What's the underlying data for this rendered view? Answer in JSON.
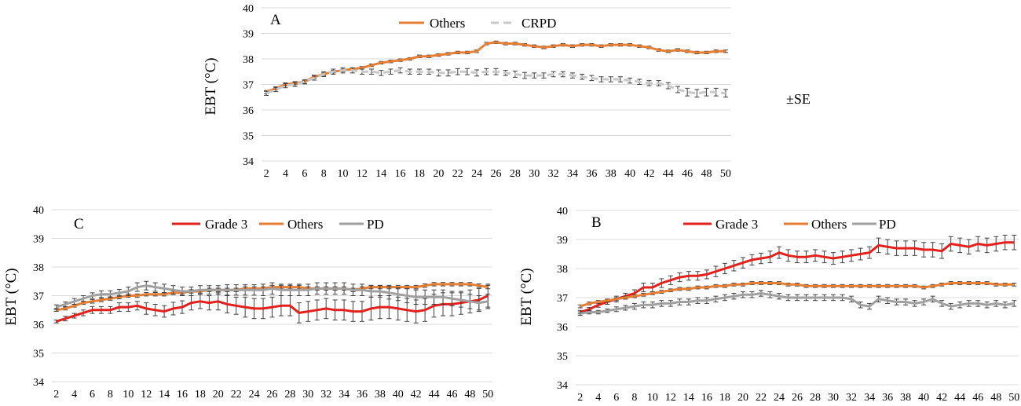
{
  "note": "±SE",
  "chart_data": [
    {
      "type": "line",
      "panel": "A",
      "ylabel": "EBT (°C)",
      "ylim": [
        34,
        40
      ],
      "yticks": [
        "34",
        "35",
        "36",
        "37",
        "38",
        "39",
        "40"
      ],
      "x": [
        2,
        3,
        4,
        5,
        6,
        7,
        8,
        9,
        10,
        11,
        12,
        13,
        14,
        15,
        16,
        17,
        18,
        19,
        20,
        21,
        22,
        23,
        24,
        25,
        26,
        27,
        28,
        29,
        30,
        31,
        32,
        33,
        34,
        35,
        36,
        37,
        38,
        39,
        40,
        41,
        42,
        43,
        44,
        45,
        46,
        47,
        48,
        49,
        50
      ],
      "xticks": [
        "2",
        "4",
        "6",
        "8",
        "10",
        "12",
        "14",
        "16",
        "18",
        "20",
        "22",
        "24",
        "26",
        "28",
        "30",
        "32",
        "34",
        "36",
        "38",
        "40",
        "42",
        "44",
        "46",
        "48",
        "50"
      ],
      "grid": true,
      "legend": "top",
      "series": [
        {
          "name": "Others",
          "color": "#E67E34",
          "style": "solid",
          "values": [
            36.7,
            36.85,
            37.0,
            37.05,
            37.1,
            37.3,
            37.4,
            37.5,
            37.55,
            37.6,
            37.65,
            37.75,
            37.85,
            37.9,
            37.95,
            38.0,
            38.1,
            38.1,
            38.15,
            38.2,
            38.25,
            38.25,
            38.3,
            38.6,
            38.65,
            38.6,
            38.6,
            38.55,
            38.5,
            38.45,
            38.5,
            38.55,
            38.5,
            38.55,
            38.55,
            38.5,
            38.55,
            38.55,
            38.55,
            38.5,
            38.45,
            38.35,
            38.3,
            38.35,
            38.3,
            38.25,
            38.25,
            38.3,
            38.3
          ],
          "se": [
            0.06,
            0.06,
            0.06,
            0.06,
            0.06,
            0.06,
            0.05,
            0.05,
            0.05,
            0.05,
            0.05,
            0.05,
            0.05,
            0.05,
            0.05,
            0.05,
            0.05,
            0.05,
            0.05,
            0.05,
            0.05,
            0.05,
            0.05,
            0.05,
            0.05,
            0.05,
            0.05,
            0.05,
            0.05,
            0.05,
            0.05,
            0.05,
            0.05,
            0.05,
            0.05,
            0.05,
            0.05,
            0.05,
            0.05,
            0.05,
            0.05,
            0.05,
            0.05,
            0.05,
            0.05,
            0.05,
            0.05,
            0.05,
            0.05
          ]
        },
        {
          "name": "CRPD",
          "color": "#C8C8C8",
          "style": "dashed",
          "values": [
            36.65,
            36.8,
            36.95,
            37.0,
            37.1,
            37.25,
            37.4,
            37.5,
            37.55,
            37.55,
            37.5,
            37.5,
            37.45,
            37.5,
            37.55,
            37.5,
            37.5,
            37.5,
            37.45,
            37.45,
            37.5,
            37.5,
            37.45,
            37.5,
            37.5,
            37.45,
            37.4,
            37.35,
            37.35,
            37.35,
            37.4,
            37.4,
            37.35,
            37.3,
            37.25,
            37.2,
            37.2,
            37.2,
            37.15,
            37.1,
            37.05,
            37.05,
            36.95,
            36.8,
            36.7,
            36.65,
            36.7,
            36.7,
            36.65
          ],
          "se": [
            0.08,
            0.08,
            0.08,
            0.08,
            0.08,
            0.08,
            0.09,
            0.1,
            0.1,
            0.1,
            0.1,
            0.1,
            0.1,
            0.1,
            0.1,
            0.1,
            0.1,
            0.1,
            0.12,
            0.12,
            0.12,
            0.12,
            0.12,
            0.12,
            0.12,
            0.1,
            0.12,
            0.12,
            0.1,
            0.1,
            0.1,
            0.1,
            0.1,
            0.1,
            0.1,
            0.1,
            0.1,
            0.1,
            0.1,
            0.1,
            0.1,
            0.1,
            0.12,
            0.12,
            0.15,
            0.15,
            0.15,
            0.15,
            0.15
          ]
        }
      ]
    },
    {
      "type": "line",
      "panel": "C",
      "ylabel": "EBT (°C)",
      "ylim": [
        34,
        40
      ],
      "yticks": [
        "34",
        "35",
        "36",
        "37",
        "38",
        "39",
        "40"
      ],
      "x": [
        2,
        3,
        4,
        5,
        6,
        7,
        8,
        9,
        10,
        11,
        12,
        13,
        14,
        15,
        16,
        17,
        18,
        19,
        20,
        21,
        22,
        23,
        24,
        25,
        26,
        27,
        28,
        29,
        30,
        31,
        32,
        33,
        34,
        35,
        36,
        37,
        38,
        39,
        40,
        41,
        42,
        43,
        44,
        45,
        46,
        47,
        48,
        49,
        50
      ],
      "xticks": [
        "2",
        "4",
        "6",
        "8",
        "10",
        "12",
        "14",
        "16",
        "18",
        "20",
        "22",
        "24",
        "26",
        "28",
        "30",
        "32",
        "34",
        "36",
        "38",
        "40",
        "42",
        "44",
        "46",
        "48",
        "50"
      ],
      "grid": true,
      "legend": "top",
      "series": [
        {
          "name": "Grade 3",
          "color": "#E3201B",
          "style": "solid",
          "values": [
            36.1,
            36.2,
            36.3,
            36.4,
            36.5,
            36.5,
            36.5,
            36.6,
            36.6,
            36.65,
            36.55,
            36.5,
            36.45,
            36.55,
            36.6,
            36.75,
            36.8,
            36.75,
            36.8,
            36.7,
            36.65,
            36.6,
            36.55,
            36.55,
            36.6,
            36.65,
            36.65,
            36.4,
            36.45,
            36.5,
            36.55,
            36.5,
            36.5,
            36.45,
            36.45,
            36.55,
            36.6,
            36.6,
            36.55,
            36.5,
            36.45,
            36.5,
            36.65,
            36.7,
            36.7,
            36.75,
            36.8,
            36.85,
            37.0
          ],
          "se": [
            0.05,
            0.08,
            0.08,
            0.1,
            0.12,
            0.12,
            0.12,
            0.15,
            0.15,
            0.15,
            0.2,
            0.2,
            0.2,
            0.22,
            0.22,
            0.25,
            0.25,
            0.25,
            0.3,
            0.3,
            0.3,
            0.35,
            0.35,
            0.35,
            0.35,
            0.35,
            0.35,
            0.35,
            0.35,
            0.35,
            0.35,
            0.35,
            0.35,
            0.35,
            0.35,
            0.4,
            0.4,
            0.4,
            0.4,
            0.4,
            0.4,
            0.4,
            0.4,
            0.4,
            0.4,
            0.4,
            0.4,
            0.4,
            0.4
          ]
        },
        {
          "name": "Others",
          "color": "#E67E34",
          "style": "solid",
          "values": [
            36.5,
            36.55,
            36.65,
            36.75,
            36.8,
            36.85,
            36.9,
            36.95,
            37.0,
            37.0,
            37.05,
            37.05,
            37.05,
            37.1,
            37.1,
            37.15,
            37.15,
            37.2,
            37.2,
            37.2,
            37.2,
            37.25,
            37.25,
            37.25,
            37.3,
            37.3,
            37.3,
            37.3,
            37.25,
            37.25,
            37.25,
            37.25,
            37.25,
            37.2,
            37.25,
            37.3,
            37.3,
            37.3,
            37.3,
            37.3,
            37.3,
            37.35,
            37.4,
            37.4,
            37.4,
            37.4,
            37.4,
            37.35,
            37.3
          ],
          "se": [
            0.05,
            0.05,
            0.05,
            0.05,
            0.06,
            0.06,
            0.06,
            0.06,
            0.06,
            0.06,
            0.06,
            0.06,
            0.06,
            0.06,
            0.06,
            0.06,
            0.06,
            0.06,
            0.06,
            0.06,
            0.06,
            0.06,
            0.06,
            0.06,
            0.06,
            0.06,
            0.06,
            0.06,
            0.06,
            0.06,
            0.06,
            0.06,
            0.06,
            0.06,
            0.06,
            0.06,
            0.06,
            0.06,
            0.06,
            0.06,
            0.06,
            0.06,
            0.06,
            0.06,
            0.06,
            0.06,
            0.06,
            0.06,
            0.06
          ]
        },
        {
          "name": "PD",
          "color": "#A0A0A0",
          "style": "solid",
          "values": [
            36.6,
            36.7,
            36.8,
            36.9,
            37.0,
            37.05,
            37.05,
            37.1,
            37.15,
            37.3,
            37.35,
            37.3,
            37.25,
            37.2,
            37.15,
            37.15,
            37.2,
            37.2,
            37.2,
            37.2,
            37.2,
            37.2,
            37.2,
            37.2,
            37.25,
            37.2,
            37.2,
            37.2,
            37.2,
            37.25,
            37.25,
            37.25,
            37.25,
            37.2,
            37.2,
            37.15,
            37.15,
            37.1,
            37.05,
            37.0,
            36.95,
            36.95,
            36.95,
            36.95,
            36.9,
            36.85,
            36.8,
            36.75,
            36.8
          ],
          "se": [
            0.08,
            0.08,
            0.1,
            0.1,
            0.1,
            0.12,
            0.12,
            0.12,
            0.15,
            0.15,
            0.15,
            0.15,
            0.15,
            0.15,
            0.15,
            0.15,
            0.15,
            0.15,
            0.15,
            0.18,
            0.18,
            0.18,
            0.18,
            0.2,
            0.2,
            0.2,
            0.2,
            0.2,
            0.2,
            0.2,
            0.2,
            0.2,
            0.2,
            0.2,
            0.2,
            0.2,
            0.2,
            0.22,
            0.22,
            0.25,
            0.25,
            0.25,
            0.25,
            0.25,
            0.25,
            0.25,
            0.25,
            0.25,
            0.25
          ]
        }
      ]
    },
    {
      "type": "line",
      "panel": "B",
      "ylabel": "EBT (°C)",
      "ylim": [
        34,
        40
      ],
      "yticks": [
        "34",
        "35",
        "36",
        "37",
        "38",
        "39",
        "40"
      ],
      "x": [
        2,
        3,
        4,
        5,
        6,
        7,
        8,
        9,
        10,
        11,
        12,
        13,
        14,
        15,
        16,
        17,
        18,
        19,
        20,
        21,
        22,
        23,
        24,
        25,
        26,
        27,
        28,
        29,
        30,
        31,
        32,
        33,
        34,
        35,
        36,
        37,
        38,
        39,
        40,
        41,
        42,
        43,
        44,
        45,
        46,
        47,
        48,
        49,
        50
      ],
      "xticks": [
        "2",
        "4",
        "6",
        "8",
        "10",
        "12",
        "14",
        "16",
        "18",
        "20",
        "22",
        "24",
        "26",
        "28",
        "30",
        "32",
        "34",
        "36",
        "38",
        "40",
        "42",
        "44",
        "46",
        "48",
        "50"
      ],
      "grid": true,
      "legend": "top",
      "series": [
        {
          "name": "Grade 3",
          "color": "#E3201B",
          "style": "solid",
          "values": [
            36.5,
            36.6,
            36.75,
            36.85,
            36.95,
            37.05,
            37.15,
            37.35,
            37.35,
            37.5,
            37.6,
            37.7,
            37.75,
            37.75,
            37.8,
            37.9,
            38.0,
            38.1,
            38.2,
            38.3,
            38.35,
            38.4,
            38.55,
            38.45,
            38.4,
            38.4,
            38.45,
            38.4,
            38.35,
            38.4,
            38.45,
            38.5,
            38.55,
            38.8,
            38.75,
            38.7,
            38.7,
            38.7,
            38.65,
            38.65,
            38.6,
            38.85,
            38.8,
            38.75,
            38.85,
            38.8,
            38.85,
            38.9,
            38.9
          ],
          "se": [
            0.06,
            0.06,
            0.08,
            0.08,
            0.1,
            0.1,
            0.12,
            0.15,
            0.15,
            0.15,
            0.15,
            0.15,
            0.15,
            0.15,
            0.15,
            0.18,
            0.18,
            0.18,
            0.18,
            0.18,
            0.18,
            0.2,
            0.2,
            0.2,
            0.2,
            0.2,
            0.2,
            0.2,
            0.2,
            0.2,
            0.2,
            0.2,
            0.2,
            0.25,
            0.25,
            0.25,
            0.25,
            0.25,
            0.25,
            0.25,
            0.25,
            0.25,
            0.25,
            0.25,
            0.25,
            0.25,
            0.25,
            0.25,
            0.25
          ]
        },
        {
          "name": "Others",
          "color": "#E67E34",
          "style": "solid",
          "values": [
            36.7,
            36.8,
            36.85,
            36.9,
            36.95,
            37.0,
            37.05,
            37.1,
            37.15,
            37.2,
            37.25,
            37.3,
            37.3,
            37.35,
            37.35,
            37.4,
            37.4,
            37.45,
            37.45,
            37.5,
            37.5,
            37.5,
            37.5,
            37.45,
            37.45,
            37.4,
            37.4,
            37.4,
            37.4,
            37.4,
            37.4,
            37.4,
            37.4,
            37.4,
            37.4,
            37.4,
            37.4,
            37.4,
            37.35,
            37.4,
            37.45,
            37.5,
            37.5,
            37.5,
            37.5,
            37.5,
            37.45,
            37.45,
            37.45
          ],
          "se": [
            0.05,
            0.05,
            0.05,
            0.05,
            0.05,
            0.05,
            0.05,
            0.05,
            0.05,
            0.05,
            0.05,
            0.05,
            0.05,
            0.05,
            0.05,
            0.05,
            0.05,
            0.05,
            0.05,
            0.05,
            0.05,
            0.05,
            0.05,
            0.05,
            0.05,
            0.05,
            0.05,
            0.05,
            0.05,
            0.05,
            0.05,
            0.05,
            0.05,
            0.05,
            0.05,
            0.05,
            0.05,
            0.05,
            0.05,
            0.05,
            0.05,
            0.05,
            0.05,
            0.05,
            0.05,
            0.05,
            0.05,
            0.05,
            0.05
          ]
        },
        {
          "name": "PD",
          "color": "#A0A0A0",
          "style": "solid",
          "values": [
            36.45,
            36.5,
            36.5,
            36.55,
            36.6,
            36.65,
            36.7,
            36.75,
            36.75,
            36.8,
            36.8,
            36.85,
            36.85,
            36.9,
            36.9,
            36.95,
            37.0,
            37.05,
            37.1,
            37.1,
            37.15,
            37.1,
            37.05,
            37.0,
            37.0,
            37.0,
            37.0,
            37.0,
            37.0,
            37.0,
            36.95,
            36.75,
            36.7,
            36.95,
            36.9,
            36.85,
            36.85,
            36.8,
            36.85,
            36.95,
            36.8,
            36.7,
            36.75,
            36.8,
            36.8,
            36.75,
            36.8,
            36.75,
            36.8
          ],
          "se": [
            0.06,
            0.06,
            0.06,
            0.06,
            0.08,
            0.08,
            0.1,
            0.1,
            0.1,
            0.1,
            0.1,
            0.1,
            0.1,
            0.1,
            0.1,
            0.1,
            0.1,
            0.1,
            0.1,
            0.1,
            0.1,
            0.1,
            0.1,
            0.1,
            0.1,
            0.1,
            0.1,
            0.1,
            0.1,
            0.1,
            0.1,
            0.1,
            0.1,
            0.1,
            0.1,
            0.1,
            0.1,
            0.1,
            0.1,
            0.1,
            0.1,
            0.1,
            0.1,
            0.1,
            0.1,
            0.1,
            0.1,
            0.1,
            0.1
          ]
        }
      ]
    }
  ]
}
